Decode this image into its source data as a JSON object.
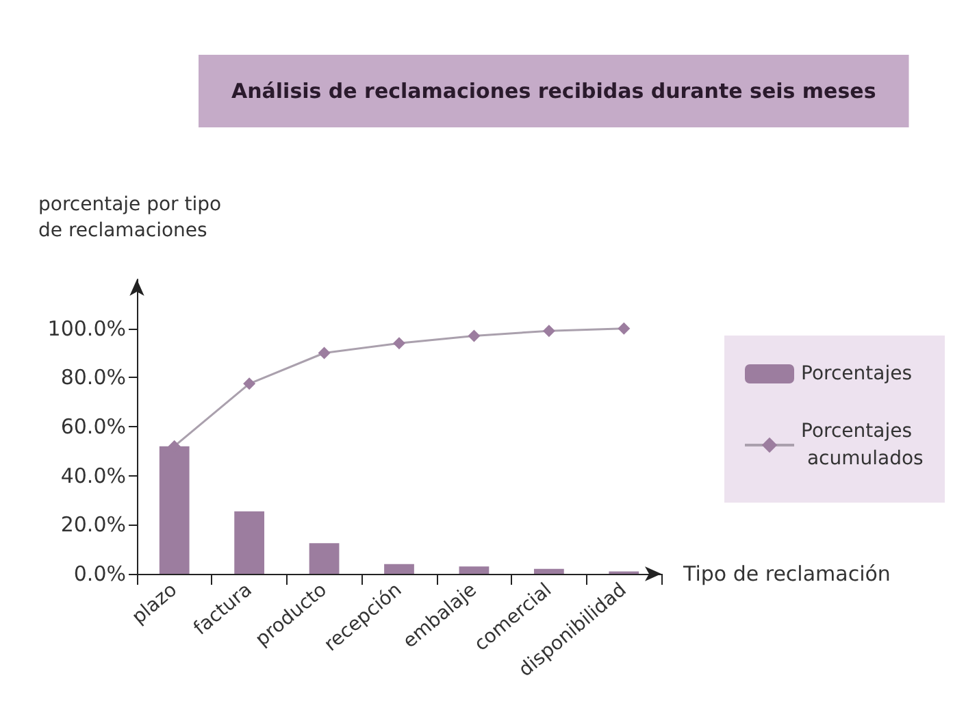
{
  "chart_data": {
    "type": "bar",
    "title": "Análisis de reclamaciones recibidas durante seis meses",
    "categories": [
      "plazo",
      "factura",
      "producto",
      "recepción",
      "embalaje",
      "comercial",
      "disponibilidad"
    ],
    "series": [
      {
        "name": "Porcentajes",
        "color": "#9c7d9f",
        "values": [
          52,
          25.5,
          12.5,
          4,
          3,
          2,
          1
        ]
      },
      {
        "name": "Porcentajes acumulados",
        "type": "line",
        "color": "#9c7d9f",
        "marker": "diamond",
        "values": [
          52,
          77.5,
          90,
          94,
          97,
          99,
          100
        ]
      }
    ],
    "xlabel": "Tipo de reclamación",
    "ylabel": "porcentaje por tipo de reclamaciones",
    "ylim": [
      0,
      120
    ],
    "yticks": [
      {
        "value": 0,
        "label": "0.0%"
      },
      {
        "value": 20,
        "label": "20.0%"
      },
      {
        "value": 40,
        "label": "40.0%"
      },
      {
        "value": 60,
        "label": "60.0%"
      },
      {
        "value": 80,
        "label": "80.0%"
      },
      {
        "value": 100,
        "label": "100.0%"
      }
    ],
    "grid": false,
    "legend": "right"
  }
}
